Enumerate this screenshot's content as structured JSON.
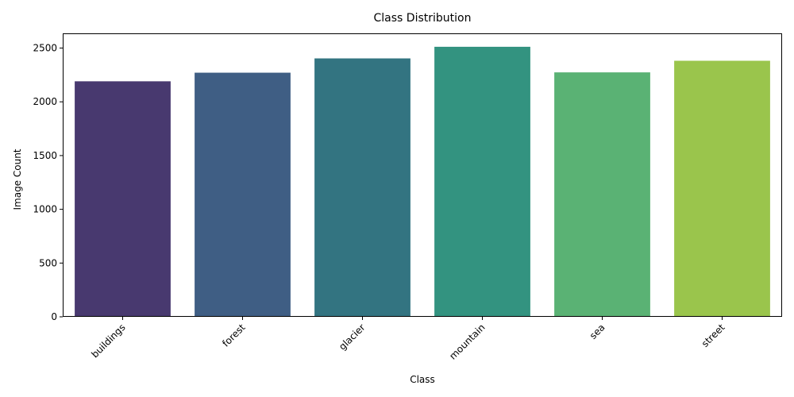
{
  "chart_data": {
    "type": "bar",
    "title": "Class Distribution",
    "xlabel": "Class",
    "ylabel": "Image Count",
    "categories": [
      "buildings",
      "forest",
      "glacier",
      "mountain",
      "sea",
      "street"
    ],
    "values": [
      2191,
      2271,
      2404,
      2512,
      2274,
      2382
    ],
    "colors": [
      "#48396f",
      "#3f5e84",
      "#337481",
      "#339380",
      "#5ab274",
      "#9ac54c"
    ],
    "ylim": [
      0,
      2637
    ],
    "yticks": [
      0,
      500,
      1000,
      1500,
      2000,
      2500
    ],
    "grid": false,
    "x_tick_rotation": 45
  }
}
